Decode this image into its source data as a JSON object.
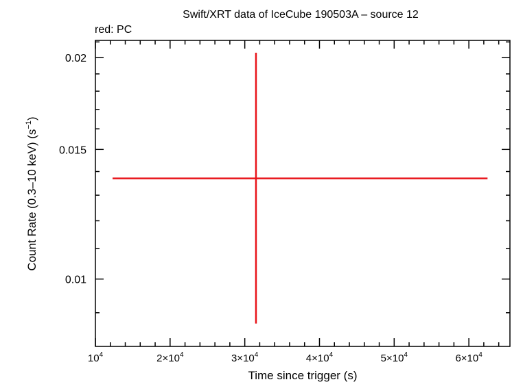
{
  "chart_data": {
    "type": "scatter",
    "title": "Swift/XRT data of IceCube 190503A – source 12",
    "subtitle": "red: PC",
    "xlabel": "Time since trigger (s)",
    "ylabel": "Count Rate (0.3–10 keV) (s",
    "ylabel_exp": "−1",
    "ylabel_tail": ")",
    "xlim": [
      10000,
      65500
    ],
    "ylim": [
      0.0081,
      0.0211
    ],
    "x_scale": "linear",
    "y_scale": "log",
    "x_ticks": [
      {
        "value": 10000,
        "mant": "",
        "base": "10",
        "exp": "4"
      },
      {
        "value": 20000,
        "mant": "2×",
        "base": "10",
        "exp": "4"
      },
      {
        "value": 30000,
        "mant": "3×",
        "base": "10",
        "exp": "4"
      },
      {
        "value": 40000,
        "mant": "4×",
        "base": "10",
        "exp": "4"
      },
      {
        "value": 50000,
        "mant": "5×",
        "base": "10",
        "exp": "4"
      },
      {
        "value": 60000,
        "mant": "6×",
        "base": "10",
        "exp": "4"
      }
    ],
    "y_ticks": [
      {
        "value": 0.01,
        "label": "0.01"
      },
      {
        "value": 0.015,
        "label": "0.015"
      },
      {
        "value": 0.02,
        "label": "0.02"
      }
    ],
    "series": [
      {
        "color": "#e8141a",
        "points": [
          {
            "x": 31500,
            "x_lo": 12300,
            "x_hi": 62500,
            "y": 0.0137,
            "y_lo": 0.0087,
            "y_hi": 0.0203
          }
        ]
      }
    ],
    "grid": false,
    "legend": "none"
  }
}
